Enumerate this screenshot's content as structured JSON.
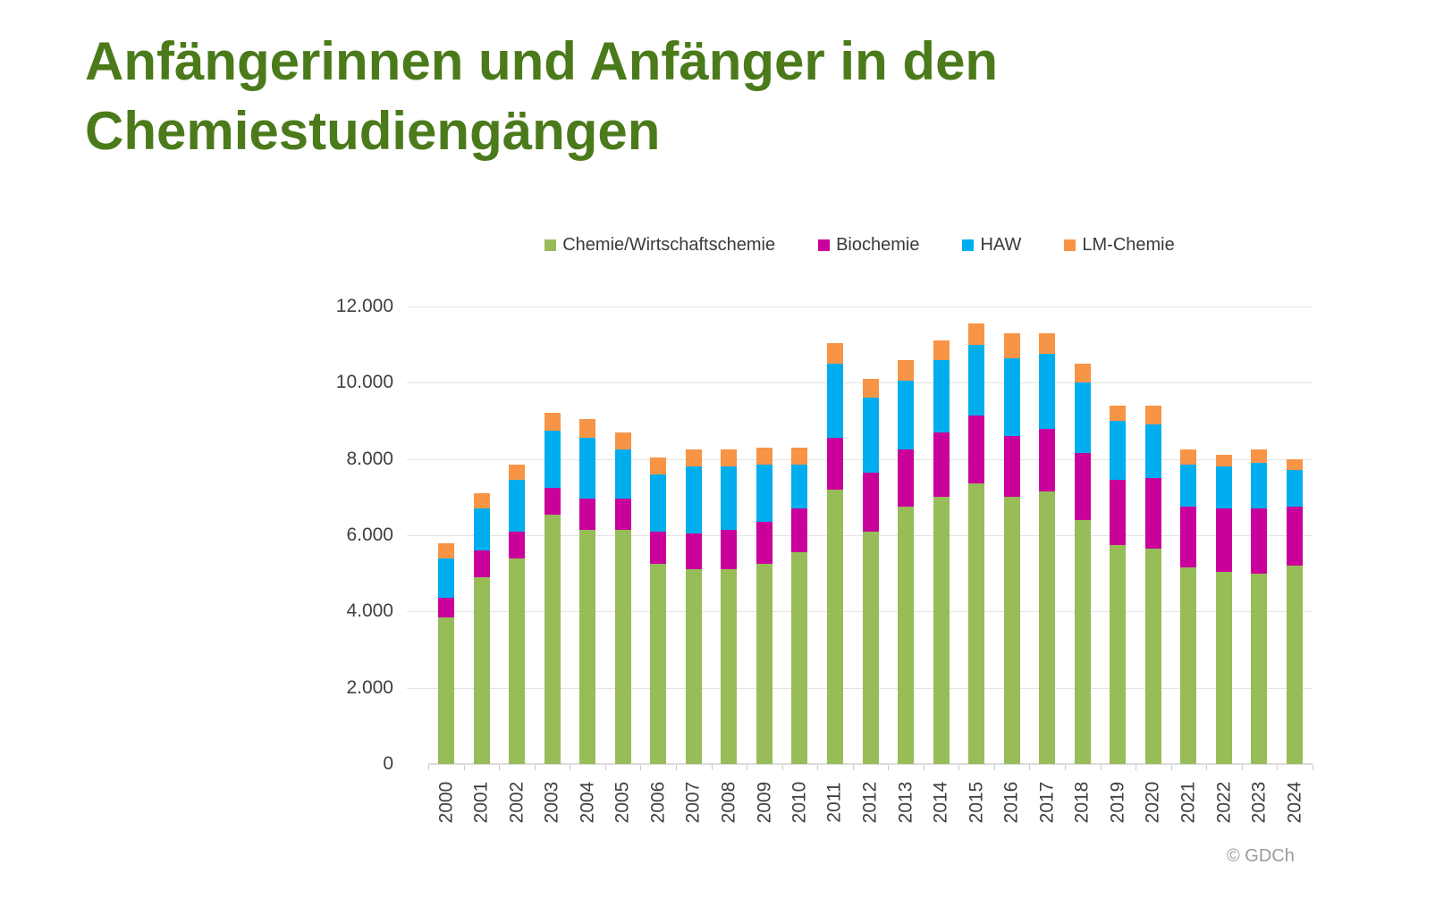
{
  "title": {
    "line1": "Anfängerinnen und Anfänger in den",
    "line2": "Chemiestudiengängen"
  },
  "credit": "© GDCh",
  "colors": {
    "title_green": "#4b7a1b",
    "gridline": "#e3e3e3",
    "axis_text": "#3f3f3f",
    "credit_gray": "#9a9a9a"
  },
  "chart_data": {
    "type": "bar",
    "stacked": true,
    "title": "Anfängerinnen und Anfänger in den Chemiestudiengängen",
    "grid": true,
    "legend_position": "top",
    "ylim": [
      0,
      12000
    ],
    "ytick_step": 2000,
    "ytick_labels": [
      "0",
      "2.000",
      "4.000",
      "6.000",
      "8.000",
      "10.000",
      "12.000"
    ],
    "categories": [
      "2000",
      "2001",
      "2002",
      "2003",
      "2004",
      "2005",
      "2006",
      "2007",
      "2008",
      "2009",
      "2010",
      "2011",
      "2012",
      "2013",
      "2014",
      "2015",
      "2016",
      "2017",
      "2018",
      "2019",
      "2020",
      "2021",
      "2022",
      "2023",
      "2024"
    ],
    "series": [
      {
        "name": "Chemie/Wirtschaftschemie",
        "color": "#97BC58",
        "values": [
          3850,
          4900,
          5400,
          6550,
          6150,
          6150,
          5250,
          5100,
          5100,
          5250,
          5550,
          7200,
          6100,
          6750,
          7000,
          7350,
          7000,
          7150,
          6400,
          5750,
          5650,
          5150,
          5050,
          5000,
          5200
        ]
      },
      {
        "name": "Biochemie",
        "color": "#C9009A",
        "values": [
          500,
          700,
          700,
          700,
          800,
          800,
          850,
          950,
          1050,
          1100,
          1150,
          1350,
          1550,
          1500,
          1700,
          1800,
          1600,
          1650,
          1750,
          1700,
          1850,
          1600,
          1650,
          1700,
          1550
        ]
      },
      {
        "name": "HAW",
        "color": "#00AEEF",
        "values": [
          1050,
          1100,
          1350,
          1500,
          1600,
          1300,
          1500,
          1750,
          1650,
          1500,
          1150,
          1950,
          1950,
          1800,
          1900,
          1850,
          2050,
          1950,
          1850,
          1550,
          1400,
          1100,
          1100,
          1200,
          950
        ]
      },
      {
        "name": "LM-Chemie",
        "color": "#F79446",
        "values": [
          400,
          400,
          400,
          450,
          500,
          450,
          450,
          450,
          450,
          450,
          450,
          550,
          500,
          550,
          500,
          550,
          650,
          550,
          500,
          400,
          500,
          400,
          300,
          350,
          300
        ]
      }
    ]
  }
}
